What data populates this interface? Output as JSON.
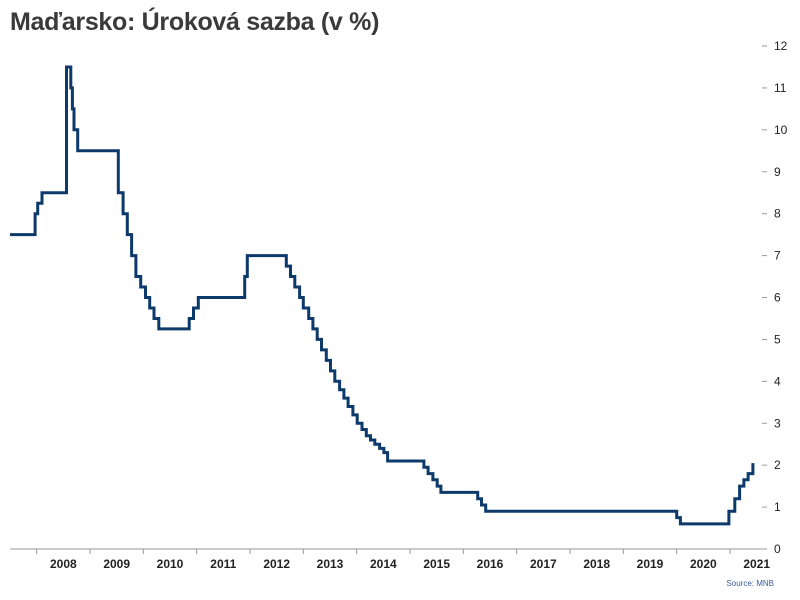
{
  "chart_data": {
    "type": "line",
    "title": "Maďarsko: Úroková sazba (v %)",
    "source": "Source: MNB",
    "xlabel": "",
    "ylabel": "",
    "ylim": [
      0,
      12
    ],
    "yticks": [
      0,
      1,
      2,
      3,
      4,
      5,
      6,
      7,
      8,
      9,
      10,
      11,
      12
    ],
    "xlim": [
      2007.5,
      2021.6
    ],
    "xtick_labels": [
      "2008",
      "2009",
      "2010",
      "2011",
      "2012",
      "2013",
      "2014",
      "2015",
      "2016",
      "2017",
      "2018",
      "2019",
      "2020",
      "2021"
    ],
    "line_color": "#0d3a6b",
    "grid": false,
    "series": [
      {
        "name": "",
        "points": [
          [
            2007.5,
            7.5
          ],
          [
            2007.97,
            7.5
          ],
          [
            2007.97,
            8.0
          ],
          [
            2008.02,
            8.0
          ],
          [
            2008.02,
            8.25
          ],
          [
            2008.1,
            8.25
          ],
          [
            2008.1,
            8.5
          ],
          [
            2008.56,
            8.5
          ],
          [
            2008.56,
            11.5
          ],
          [
            2008.64,
            11.5
          ],
          [
            2008.64,
            11.0
          ],
          [
            2008.67,
            11.0
          ],
          [
            2008.67,
            10.5
          ],
          [
            2008.7,
            10.5
          ],
          [
            2008.7,
            10.0
          ],
          [
            2008.77,
            10.0
          ],
          [
            2008.77,
            9.5
          ],
          [
            2009.53,
            9.5
          ],
          [
            2009.53,
            8.5
          ],
          [
            2009.62,
            8.5
          ],
          [
            2009.62,
            8.0
          ],
          [
            2009.7,
            8.0
          ],
          [
            2009.7,
            7.5
          ],
          [
            2009.78,
            7.5
          ],
          [
            2009.78,
            7.0
          ],
          [
            2009.86,
            7.0
          ],
          [
            2009.86,
            6.5
          ],
          [
            2009.95,
            6.5
          ],
          [
            2009.95,
            6.25
          ],
          [
            2010.04,
            6.25
          ],
          [
            2010.04,
            6.0
          ],
          [
            2010.12,
            6.0
          ],
          [
            2010.12,
            5.75
          ],
          [
            2010.2,
            5.75
          ],
          [
            2010.2,
            5.5
          ],
          [
            2010.29,
            5.5
          ],
          [
            2010.29,
            5.25
          ],
          [
            2010.86,
            5.25
          ],
          [
            2010.86,
            5.5
          ],
          [
            2010.94,
            5.5
          ],
          [
            2010.94,
            5.75
          ],
          [
            2011.03,
            5.75
          ],
          [
            2011.03,
            6.0
          ],
          [
            2011.9,
            6.0
          ],
          [
            2011.9,
            6.5
          ],
          [
            2011.95,
            6.5
          ],
          [
            2011.95,
            7.0
          ],
          [
            2012.68,
            7.0
          ],
          [
            2012.68,
            6.75
          ],
          [
            2012.76,
            6.75
          ],
          [
            2012.76,
            6.5
          ],
          [
            2012.84,
            6.5
          ],
          [
            2012.84,
            6.25
          ],
          [
            2012.93,
            6.25
          ],
          [
            2012.93,
            6.0
          ],
          [
            2013.0,
            6.0
          ],
          [
            2013.0,
            5.75
          ],
          [
            2013.1,
            5.75
          ],
          [
            2013.1,
            5.5
          ],
          [
            2013.18,
            5.5
          ],
          [
            2013.18,
            5.25
          ],
          [
            2013.26,
            5.25
          ],
          [
            2013.26,
            5.0
          ],
          [
            2013.34,
            5.0
          ],
          [
            2013.34,
            4.75
          ],
          [
            2013.43,
            4.75
          ],
          [
            2013.43,
            4.5
          ],
          [
            2013.51,
            4.5
          ],
          [
            2013.51,
            4.25
          ],
          [
            2013.59,
            4.25
          ],
          [
            2013.59,
            4.0
          ],
          [
            2013.68,
            4.0
          ],
          [
            2013.68,
            3.8
          ],
          [
            2013.76,
            3.8
          ],
          [
            2013.76,
            3.6
          ],
          [
            2013.84,
            3.6
          ],
          [
            2013.84,
            3.4
          ],
          [
            2013.93,
            3.4
          ],
          [
            2013.93,
            3.2
          ],
          [
            2014.01,
            3.2
          ],
          [
            2014.01,
            3.0
          ],
          [
            2014.1,
            3.0
          ],
          [
            2014.1,
            2.85
          ],
          [
            2014.18,
            2.85
          ],
          [
            2014.18,
            2.7
          ],
          [
            2014.26,
            2.7
          ],
          [
            2014.26,
            2.6
          ],
          [
            2014.34,
            2.6
          ],
          [
            2014.34,
            2.5
          ],
          [
            2014.43,
            2.5
          ],
          [
            2014.43,
            2.4
          ],
          [
            2014.51,
            2.4
          ],
          [
            2014.51,
            2.3
          ],
          [
            2014.58,
            2.3
          ],
          [
            2014.58,
            2.1
          ],
          [
            2015.26,
            2.1
          ],
          [
            2015.26,
            1.95
          ],
          [
            2015.34,
            1.95
          ],
          [
            2015.34,
            1.8
          ],
          [
            2015.43,
            1.8
          ],
          [
            2015.43,
            1.65
          ],
          [
            2015.51,
            1.65
          ],
          [
            2015.51,
            1.5
          ],
          [
            2015.58,
            1.5
          ],
          [
            2015.58,
            1.35
          ],
          [
            2016.27,
            1.35
          ],
          [
            2016.27,
            1.2
          ],
          [
            2016.34,
            1.2
          ],
          [
            2016.34,
            1.05
          ],
          [
            2016.42,
            1.05
          ],
          [
            2016.42,
            0.9
          ],
          [
            2020.0,
            0.9
          ],
          [
            2020.0,
            0.75
          ],
          [
            2020.07,
            0.75
          ],
          [
            2020.07,
            0.6
          ],
          [
            2020.98,
            0.6
          ],
          [
            2020.98,
            0.9
          ],
          [
            2021.09,
            0.9
          ],
          [
            2021.09,
            1.2
          ],
          [
            2021.18,
            1.2
          ],
          [
            2021.18,
            1.5
          ],
          [
            2021.26,
            1.5
          ],
          [
            2021.26,
            1.65
          ],
          [
            2021.34,
            1.65
          ],
          [
            2021.34,
            1.8
          ],
          [
            2021.43,
            1.8
          ],
          [
            2021.43,
            2.05
          ]
        ]
      }
    ]
  }
}
